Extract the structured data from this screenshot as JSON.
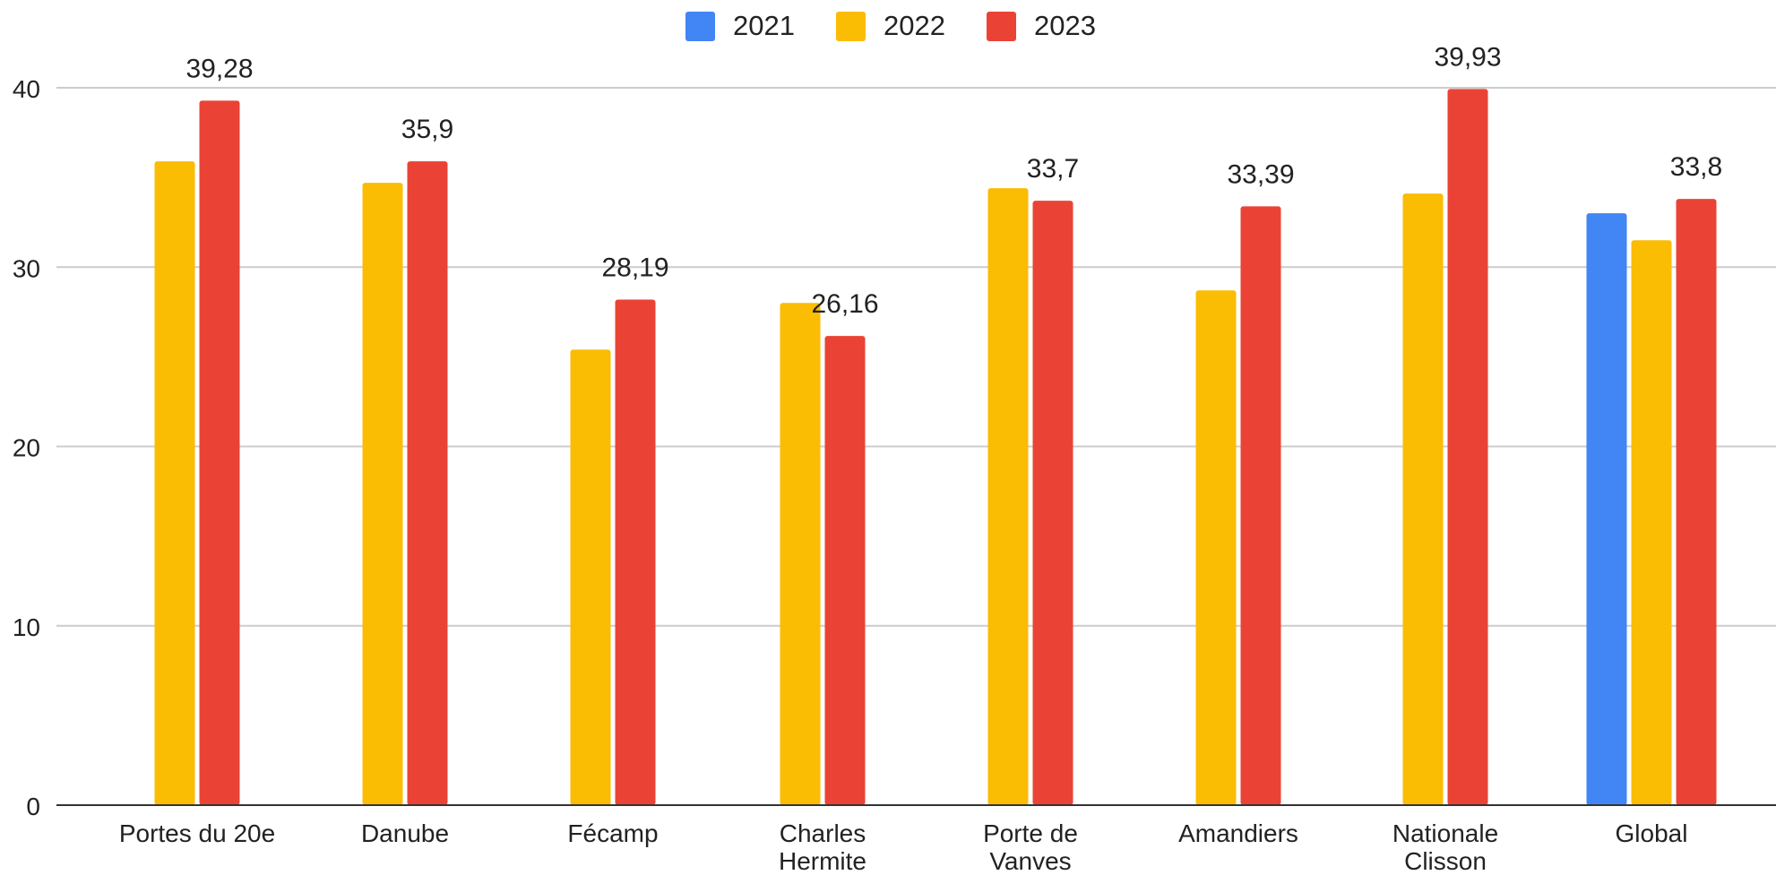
{
  "colors": {
    "s2021": "#4285f4",
    "s2022": "#fbbc04",
    "s2023": "#ea4335",
    "grid": "#cccccc",
    "axis": "#333333",
    "text": "#222222"
  },
  "legend": [
    {
      "label": "2021",
      "color": "#4285f4"
    },
    {
      "label": "2022",
      "color": "#fbbc04"
    },
    {
      "label": "2023",
      "color": "#ea4335"
    }
  ],
  "chart_data": {
    "type": "bar",
    "title": "",
    "xlabel": "",
    "ylabel": "",
    "ylim": [
      0,
      40
    ],
    "yticks": [
      "0",
      "10",
      "20",
      "30",
      "40"
    ],
    "grid": true,
    "legend_position": "top-center",
    "categories": [
      [
        "Portes du 20e"
      ],
      [
        "Danube"
      ],
      [
        "Fécamp"
      ],
      [
        "Charles",
        "Hermite"
      ],
      [
        "Porte de",
        "Vanves"
      ],
      [
        "Amandiers"
      ],
      [
        "Nationale",
        "Clisson"
      ],
      [
        "Global"
      ]
    ],
    "series": [
      {
        "name": "2021",
        "values": [
          null,
          null,
          null,
          null,
          null,
          null,
          null,
          33.0
        ]
      },
      {
        "name": "2022",
        "values": [
          35.9,
          34.7,
          25.4,
          28.0,
          34.4,
          28.7,
          34.1,
          31.5
        ]
      },
      {
        "name": "2023",
        "values": [
          39.28,
          35.9,
          28.19,
          26.16,
          33.7,
          33.39,
          39.93,
          33.8
        ]
      }
    ],
    "data_labels": [
      "39,28",
      "35,9",
      "28,19",
      "26,16",
      "33,7",
      "33,39",
      "39,93",
      "33,8"
    ]
  }
}
